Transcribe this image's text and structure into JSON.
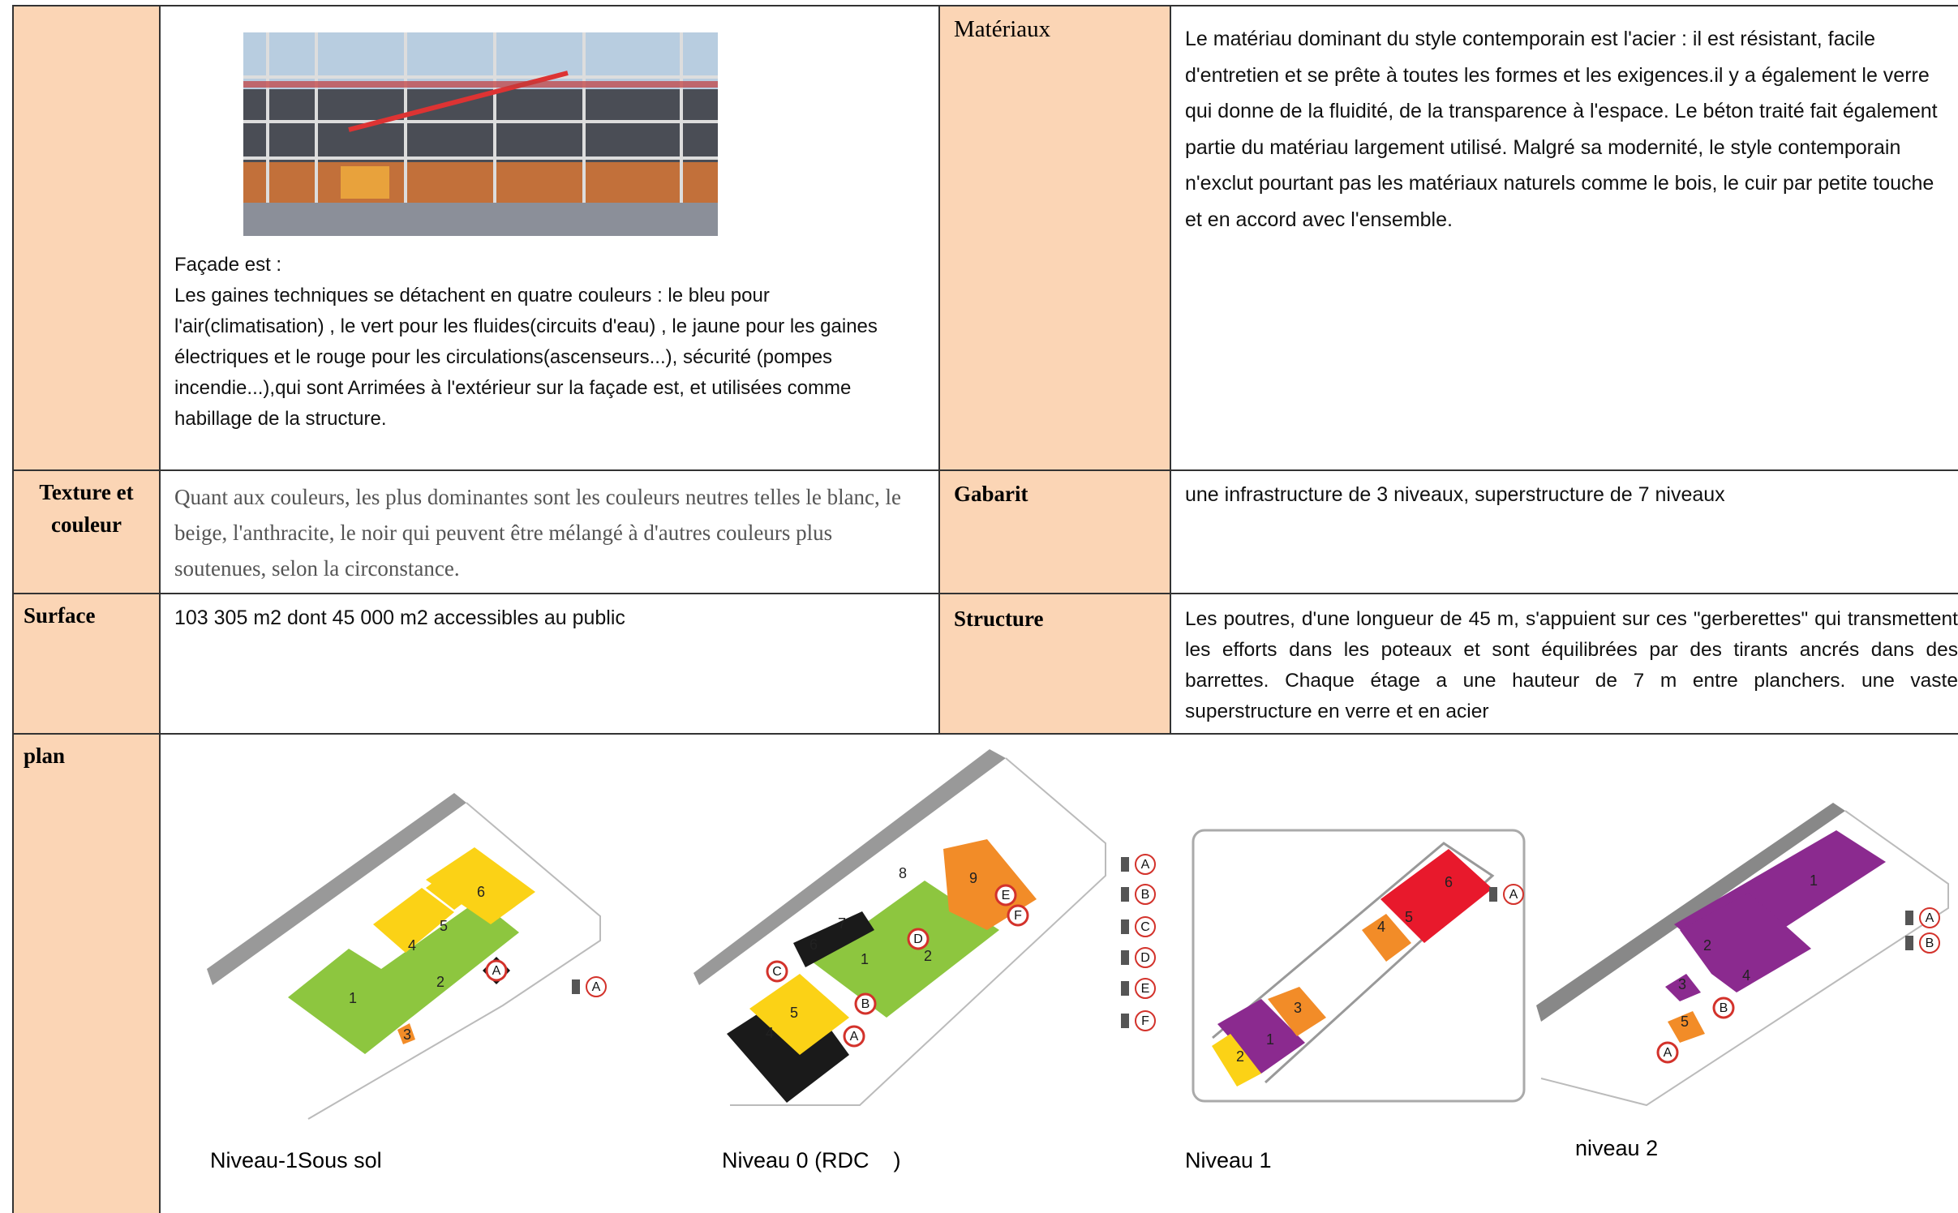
{
  "table": {
    "rows": [
      {
        "description": {
          "caption": "Façade est :",
          "text": "Les gaines techniques se détachent en quatre couleurs : le bleu pour l'air(climatisation) , le vert pour les fluides(circuits d'eau) , le jaune pour les gaines électriques et le rouge pour les circulations(ascenseurs...), sécurité (pompes incendie...),qui sont Arrimées à l'extérieur sur la façade est, et utilisées comme habillage de la structure."
        },
        "label2": "Matériaux",
        "text2": "Le matériau dominant du style contemporain est l'acier : il est résistant, facile d'entretien et se prête à toutes les formes et les exigences.il y a également le verre qui donne de la fluidité, de la transparence à l'espace. Le béton traité fait également partie du matériau largement utilisé. Malgré sa modernité, le style contemporain n'exclut pourtant pas les matériaux naturels comme le bois, le cuir par petite touche et en accord avec l'ensemble."
      },
      {
        "label": "Texture et couleur",
        "text": "Quant aux couleurs, les plus dominantes sont les couleurs neutres telles le blanc, le beige, l'anthracite, le noir qui peuvent être mélangé à d'autres couleurs plus soutenues, selon la circonstance.",
        "label2": "Gabarit",
        "text2": "une infrastructure de 3 niveaux, superstructure de 7 niveaux"
      },
      {
        "label": "Surface",
        "text": "103 305 m2 dont 45 000 m2 accessibles au public",
        "label2": "Structure",
        "text2": "Les poutres, d'une longueur de 45 m, s'appuient sur ces \"gerberettes\" qui transmettent les efforts dans les poteaux et sont équilibrées par des tirants ancrés dans des barrettes. Chaque étage a une hauteur de 7 m entre planchers. une vaste superstructure en verre et en acier"
      },
      {
        "label": "plan",
        "plans": [
          {
            "caption": "Niveau-1Sous sol",
            "zones": [
              "1",
              "2",
              "3",
              "4",
              "5",
              "6"
            ],
            "markers": [
              "A"
            ],
            "legend": [
              "A"
            ]
          },
          {
            "caption": "Niveau 0 (RDC    )",
            "zones": [
              "1",
              "2",
              "4",
              "5",
              "6",
              "7",
              "8",
              "9"
            ],
            "markers": [
              "A",
              "B",
              "C",
              "D",
              "E",
              "F"
            ],
            "legend": [
              "A",
              "B",
              "C",
              "D",
              "E",
              "F"
            ]
          },
          {
            "caption": "Niveau 1",
            "zones": [
              "1",
              "2",
              "3",
              "4",
              "5",
              "6"
            ],
            "legend": [
              "A"
            ]
          },
          {
            "caption": "niveau 2",
            "zones": [
              "1",
              "2",
              "3",
              "4",
              "5"
            ],
            "markers": [
              "A",
              "B"
            ],
            "legend": [
              "A",
              "B"
            ]
          }
        ]
      }
    ]
  }
}
